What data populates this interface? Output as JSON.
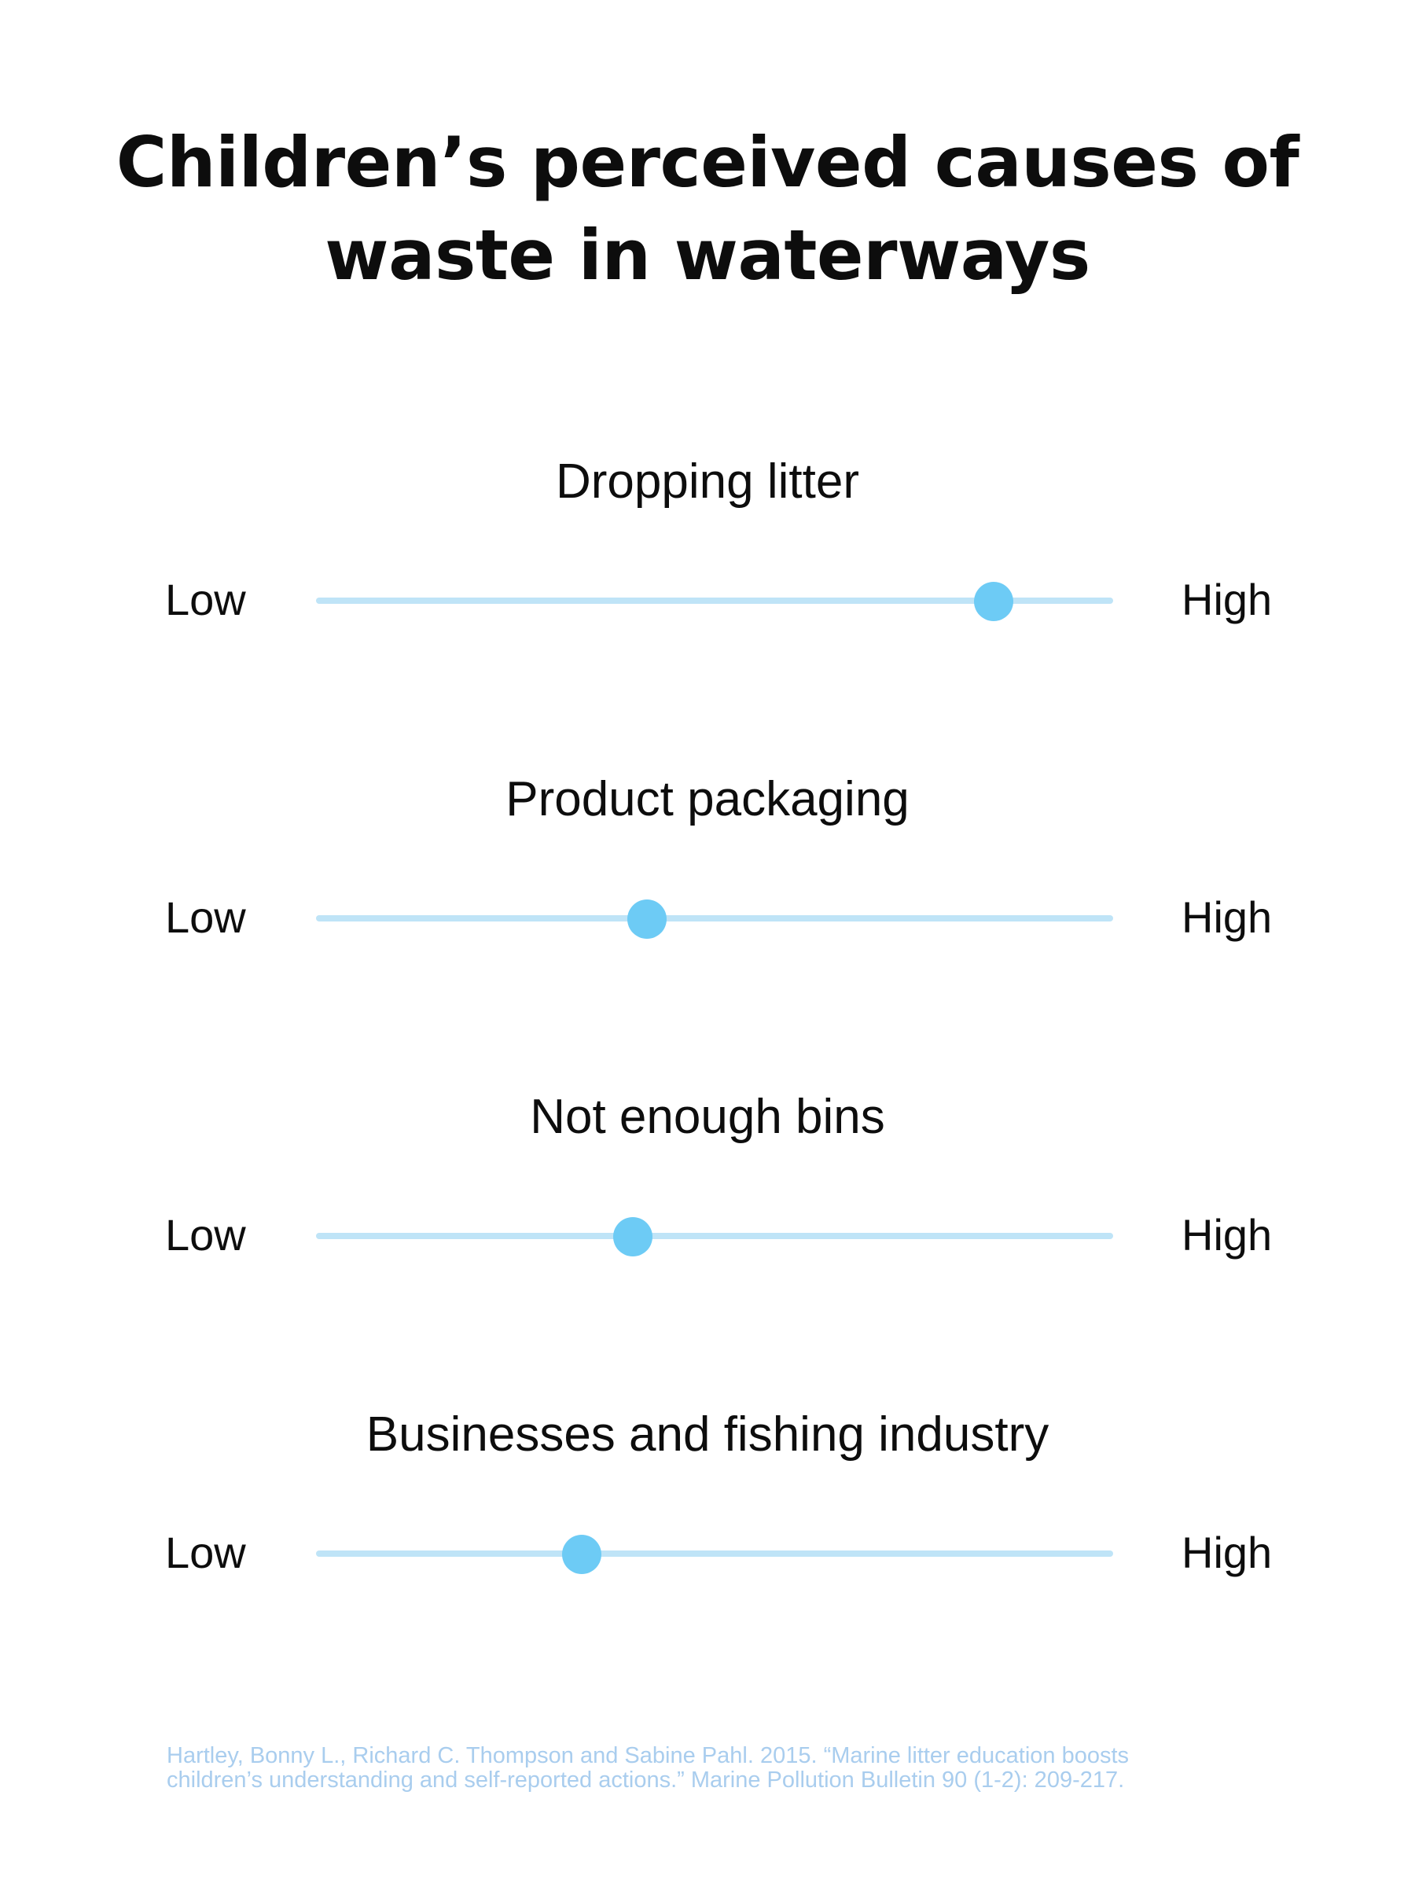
{
  "title_lines": [
    "Children’s perceived causes of",
    "waste in waterways"
  ],
  "colors": {
    "track": "#bfe4f7",
    "knob": "#6dcbf5",
    "text": "#0d0d0d",
    "source": "#a9cdee"
  },
  "chart_data": {
    "type": "scatter",
    "title": "Children’s perceived causes of waste in waterways",
    "scale": {
      "min_label": "Low",
      "max_label": "High",
      "range": [
        0,
        1
      ]
    },
    "items": [
      {
        "label": "Dropping litter",
        "value": 0.85
      },
      {
        "label": "Product packaging",
        "value": 0.415
      },
      {
        "label": "Not enough bins",
        "value": 0.397
      },
      {
        "label": "Businesses and fishing industry",
        "value": 0.333
      }
    ]
  },
  "source_lines": [
    "Hartley, Bonny L., Richard C. Thompson and Sabine Pahl. 2015. “Marine litter education boosts",
    "children’s understanding and self-reported actions.” Marine Pollution Bulletin 90 (1-2): 209-217."
  ]
}
